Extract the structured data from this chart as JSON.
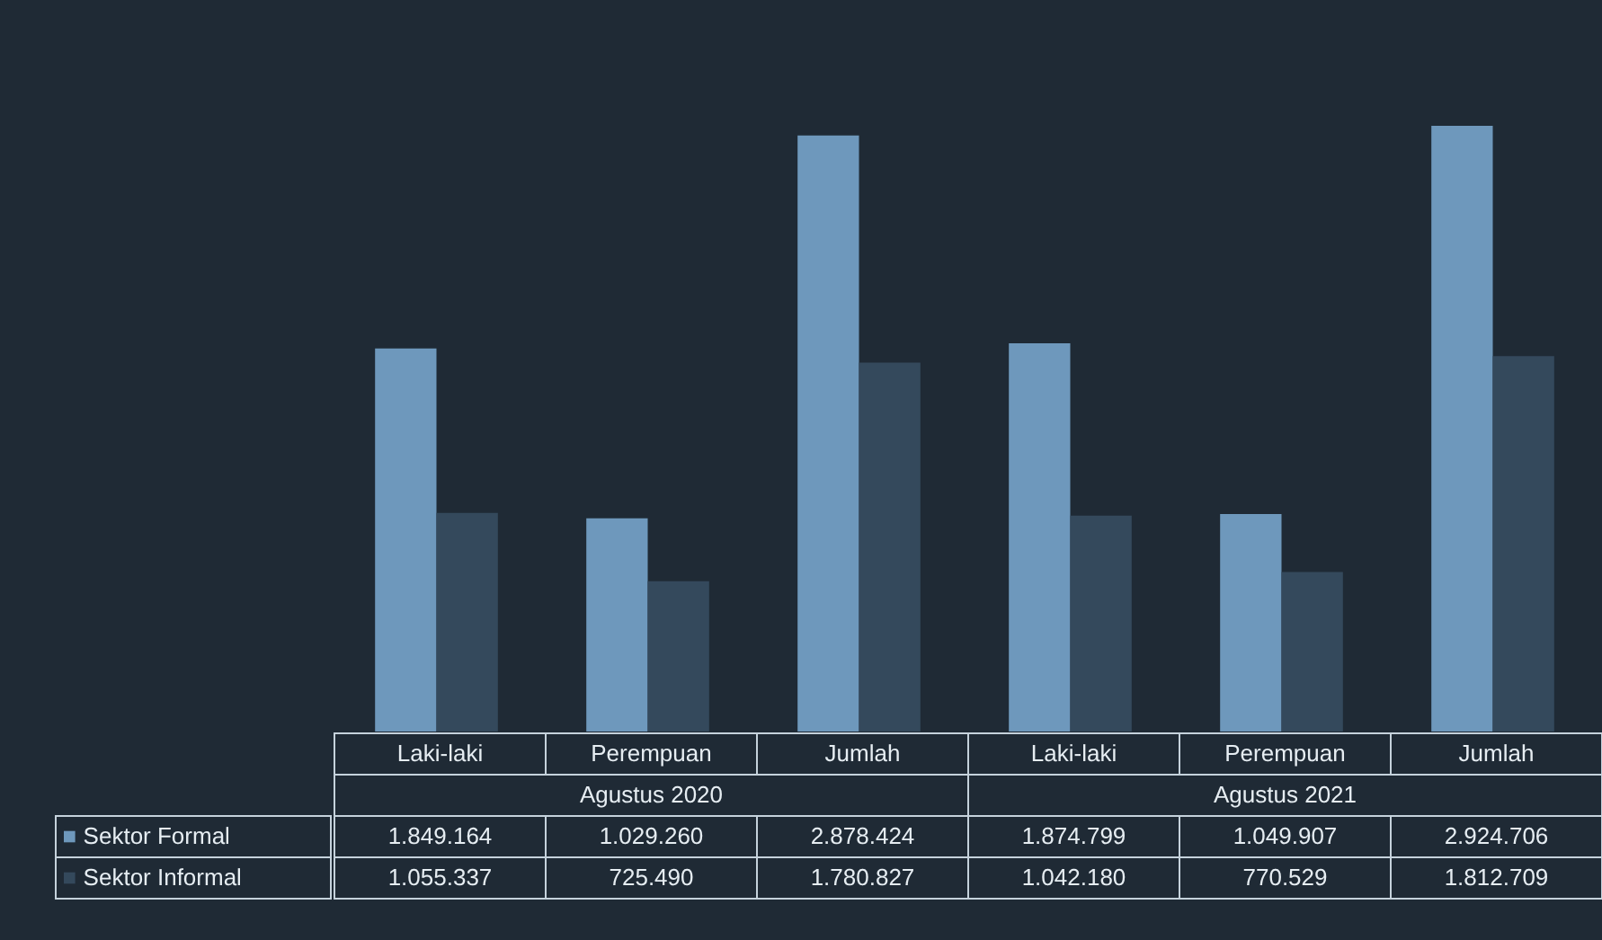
{
  "chart_data": {
    "type": "bar",
    "categories": [
      "Laki-laki",
      "Perempuan",
      "Jumlah",
      "Laki-laki",
      "Perempuan",
      "Jumlah"
    ],
    "series": [
      {
        "name": "Sektor Formal",
        "color": "#6e98bc",
        "values": [
          1849164,
          1029260,
          2878424,
          1874799,
          1049907,
          2924706
        ],
        "value_labels": [
          "1.849.164",
          "1.029.260",
          "2.878.424",
          "1.874.799",
          "1.049.907",
          "2.924.706"
        ]
      },
      {
        "name": "Sektor Informal",
        "color": "#34495c",
        "values": [
          1055337,
          725490,
          1780827,
          1042180,
          770529,
          1812709
        ],
        "value_labels": [
          "1.055.337",
          "725.490",
          "1.780.827",
          "1.042.180",
          "770.529",
          "1.812.709"
        ]
      }
    ],
    "annotations": [
      "Agustus 2020",
      "Agustus 2021"
    ],
    "legend": "bottom left"
  }
}
